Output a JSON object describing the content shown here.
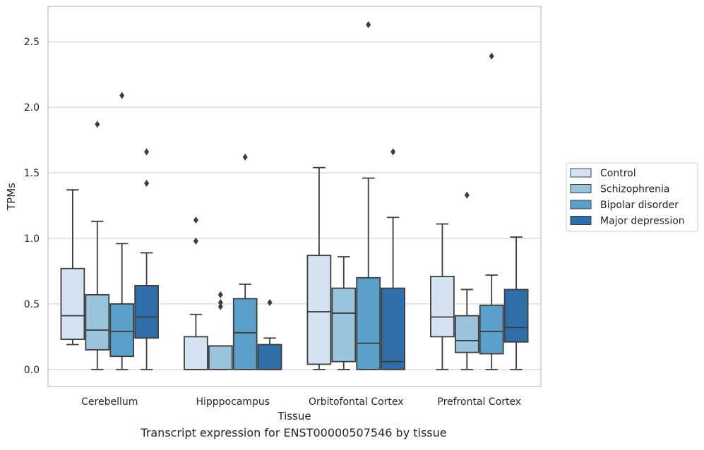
{
  "caption": "Transcript expression for ENST00000507546 by tissue",
  "chart_data": {
    "type": "box",
    "xlabel": "Tissue",
    "ylabel": "TPMs",
    "ylim": [
      -0.13,
      2.77
    ],
    "yticks": [
      0.0,
      0.5,
      1.0,
      1.5,
      2.0,
      2.5
    ],
    "ytick_labels": [
      "0.0",
      "0.5",
      "1.0",
      "1.5",
      "2.0",
      "2.5"
    ],
    "grid": "horizontal",
    "legend_position": "right",
    "categories": [
      "Cerebellum",
      "Hipppocampus",
      "Orbitofontal Cortex",
      "Prefrontal Cortex"
    ],
    "series": [
      {
        "name": "Control",
        "color": "#d4e3f2",
        "boxes": [
          {
            "whislo": 0.19,
            "q1": 0.23,
            "med": 0.41,
            "q3": 0.77,
            "whishi": 1.37,
            "fliers": []
          },
          {
            "whislo": 0.0,
            "q1": 0.0,
            "med": 0.0,
            "q3": 0.25,
            "whishi": 0.42,
            "fliers": [
              0.98,
              1.14
            ]
          },
          {
            "whislo": 0.0,
            "q1": 0.04,
            "med": 0.44,
            "q3": 0.87,
            "whishi": 1.54,
            "fliers": []
          },
          {
            "whislo": 0.0,
            "q1": 0.25,
            "med": 0.4,
            "q3": 0.71,
            "whishi": 1.11,
            "fliers": []
          }
        ]
      },
      {
        "name": "Schizophrenia",
        "color": "#9ac4de",
        "boxes": [
          {
            "whislo": 0.0,
            "q1": 0.15,
            "med": 0.3,
            "q3": 0.57,
            "whishi": 1.13,
            "fliers": [
              1.87
            ]
          },
          {
            "whislo": 0.0,
            "q1": 0.0,
            "med": 0.18,
            "q3": 0.18,
            "whishi": 0.18,
            "fliers": [
              0.48,
              0.51,
              0.57
            ]
          },
          {
            "whislo": 0.0,
            "q1": 0.06,
            "med": 0.43,
            "q3": 0.62,
            "whishi": 0.86,
            "fliers": []
          },
          {
            "whislo": 0.0,
            "q1": 0.13,
            "med": 0.22,
            "q3": 0.41,
            "whishi": 0.61,
            "fliers": [
              1.33
            ]
          }
        ]
      },
      {
        "name": "Bipolar disorder",
        "color": "#5b9fcb",
        "boxes": [
          {
            "whislo": 0.0,
            "q1": 0.1,
            "med": 0.29,
            "q3": 0.5,
            "whishi": 0.96,
            "fliers": [
              2.09
            ]
          },
          {
            "whislo": 0.0,
            "q1": 0.0,
            "med": 0.28,
            "q3": 0.54,
            "whishi": 0.65,
            "fliers": [
              1.62
            ]
          },
          {
            "whislo": 0.0,
            "q1": 0.0,
            "med": 0.2,
            "q3": 0.7,
            "whishi": 1.46,
            "fliers": [
              2.63
            ]
          },
          {
            "whislo": 0.0,
            "q1": 0.12,
            "med": 0.29,
            "q3": 0.49,
            "whishi": 0.72,
            "fliers": [
              2.39
            ]
          }
        ]
      },
      {
        "name": "Major depression",
        "color": "#2f6ea9",
        "boxes": [
          {
            "whislo": 0.0,
            "q1": 0.24,
            "med": 0.4,
            "q3": 0.64,
            "whishi": 0.89,
            "fliers": [
              1.42,
              1.66
            ]
          },
          {
            "whislo": 0.0,
            "q1": 0.0,
            "med": 0.0,
            "q3": 0.19,
            "whishi": 0.24,
            "fliers": [
              0.51
            ]
          },
          {
            "whislo": 0.0,
            "q1": 0.0,
            "med": 0.06,
            "q3": 0.62,
            "whishi": 1.16,
            "fliers": [
              1.66
            ]
          },
          {
            "whislo": 0.0,
            "q1": 0.21,
            "med": 0.32,
            "q3": 0.61,
            "whishi": 1.01,
            "fliers": []
          }
        ]
      }
    ]
  }
}
